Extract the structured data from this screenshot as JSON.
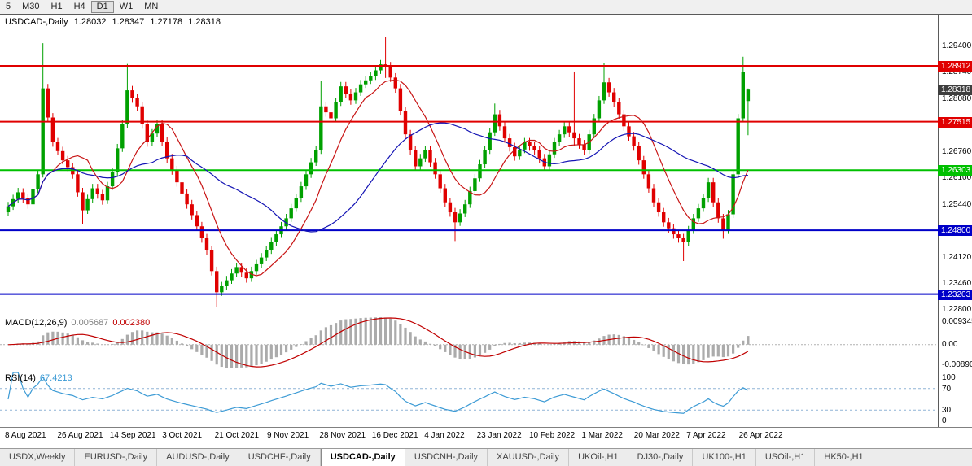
{
  "toolbar": {
    "timeframes": [
      "5",
      "M30",
      "H1",
      "H4",
      "D1",
      "W1",
      "MN"
    ],
    "active": "D1"
  },
  "chart": {
    "symbol_period": "USDCAD-,Daily",
    "ohlc": {
      "open": "1.28032",
      "high": "1.28347",
      "low": "1.27178",
      "close": "1.28318"
    },
    "price_ticks": [
      "1.29400",
      "1.28740",
      "1.28080",
      "1.27420",
      "1.26760",
      "1.26100",
      "1.25440",
      "1.24780",
      "1.24120",
      "1.23460",
      "1.22800"
    ],
    "levels": [
      {
        "value": 1.28912,
        "label": "1.28912",
        "color": "#e00000"
      },
      {
        "value": 1.27515,
        "label": "1.27515",
        "color": "#e00000"
      },
      {
        "value": 1.26303,
        "label": "1.26303",
        "color": "#00c000"
      },
      {
        "value": 1.248,
        "label": "1.24800",
        "color": "#0000c8"
      },
      {
        "value": 1.23203,
        "label": "1.23203",
        "color": "#0000c8"
      }
    ],
    "current_price": {
      "value": 1.28318,
      "label": "1.28318",
      "color": "#3f3f3f"
    },
    "dates": [
      "8 Aug 2021",
      "26 Aug 2021",
      "14 Sep 2021",
      "3 Oct 2021",
      "21 Oct 2021",
      "9 Nov 2021",
      "28 Nov 2021",
      "16 Dec 2021",
      "4 Jan 2022",
      "23 Jan 2022",
      "10 Feb 2022",
      "1 Mar 2022",
      "20 Mar 2022",
      "7 Apr 2022",
      "26 Apr 2022"
    ],
    "colors": {
      "up": "#00a000",
      "down": "#e00000",
      "ma_fast": "#c81414",
      "ma_slow": "#1414b4"
    }
  },
  "chart_data": {
    "type": "candlestick",
    "symbol": "USDCAD",
    "timeframe": "Daily",
    "note": "values estimated from pixels; [open,high,low,close] per bar",
    "candles": [
      [
        1.2525,
        1.2551,
        1.2515,
        1.254
      ],
      [
        1.254,
        1.2569,
        1.2531,
        1.2558
      ],
      [
        1.2558,
        1.2586,
        1.2549,
        1.2575
      ],
      [
        1.2575,
        1.2585,
        1.2549,
        1.256
      ],
      [
        1.256,
        1.2571,
        1.2534,
        1.2545
      ],
      [
        1.2545,
        1.2593,
        1.2536,
        1.2582
      ],
      [
        1.2582,
        1.2631,
        1.2573,
        1.262
      ],
      [
        1.262,
        1.2948,
        1.2612,
        1.2835
      ],
      [
        1.2835,
        1.2846,
        1.2751,
        1.2762
      ],
      [
        1.2762,
        1.2773,
        1.2689,
        1.27
      ],
      [
        1.27,
        1.2711,
        1.2668,
        1.2678
      ],
      [
        1.2678,
        1.2689,
        1.2645,
        1.2655
      ],
      [
        1.2655,
        1.2666,
        1.2628,
        1.2638
      ],
      [
        1.2638,
        1.2649,
        1.2609,
        1.262
      ],
      [
        1.262,
        1.2631,
        1.2564,
        1.2575
      ],
      [
        1.2575,
        1.2586,
        1.2495,
        1.253
      ],
      [
        1.253,
        1.2569,
        1.2521,
        1.2558
      ],
      [
        1.2558,
        1.2596,
        1.2549,
        1.2585
      ],
      [
        1.2585,
        1.2596,
        1.2559,
        1.257
      ],
      [
        1.257,
        1.2581,
        1.2544,
        1.2555
      ],
      [
        1.2555,
        1.2601,
        1.2546,
        1.259
      ],
      [
        1.259,
        1.2636,
        1.2581,
        1.2625
      ],
      [
        1.2625,
        1.2696,
        1.2616,
        1.2685
      ],
      [
        1.2685,
        1.2756,
        1.2676,
        1.2745
      ],
      [
        1.2745,
        1.2896,
        1.2736,
        1.283
      ],
      [
        1.283,
        1.2841,
        1.2799,
        1.281
      ],
      [
        1.281,
        1.2821,
        1.2779,
        1.279
      ],
      [
        1.279,
        1.2801,
        1.2734,
        1.2745
      ],
      [
        1.2745,
        1.2756,
        1.2689,
        1.27
      ],
      [
        1.27,
        1.2733,
        1.2691,
        1.2722
      ],
      [
        1.2722,
        1.2756,
        1.2713,
        1.2745
      ],
      [
        1.2745,
        1.2756,
        1.2691,
        1.2702
      ],
      [
        1.2702,
        1.2713,
        1.2649,
        1.266
      ],
      [
        1.266,
        1.2671,
        1.2619,
        1.263
      ],
      [
        1.263,
        1.2641,
        1.2589,
        1.26
      ],
      [
        1.26,
        1.2611,
        1.2561,
        1.2572
      ],
      [
        1.2572,
        1.2583,
        1.2534,
        1.2545
      ],
      [
        1.2545,
        1.2556,
        1.2507,
        1.2518
      ],
      [
        1.2518,
        1.2529,
        1.2479,
        1.249
      ],
      [
        1.249,
        1.2501,
        1.2449,
        1.246
      ],
      [
        1.246,
        1.2471,
        1.2419,
        1.243
      ],
      [
        1.243,
        1.2441,
        1.2367,
        1.2378
      ],
      [
        1.2378,
        1.2389,
        1.2288,
        1.2325
      ],
      [
        1.2325,
        1.2351,
        1.2316,
        1.234
      ],
      [
        1.234,
        1.2366,
        1.2331,
        1.2355
      ],
      [
        1.2355,
        1.2383,
        1.2346,
        1.2372
      ],
      [
        1.2372,
        1.2399,
        1.2363,
        1.2388
      ],
      [
        1.2388,
        1.2399,
        1.2363,
        1.2374
      ],
      [
        1.2374,
        1.2385,
        1.2349,
        1.236
      ],
      [
        1.236,
        1.2389,
        1.2351,
        1.2378
      ],
      [
        1.2378,
        1.2406,
        1.2369,
        1.2395
      ],
      [
        1.2395,
        1.2423,
        1.2386,
        1.2412
      ],
      [
        1.2412,
        1.2441,
        1.2403,
        1.243
      ],
      [
        1.243,
        1.2461,
        1.2421,
        1.245
      ],
      [
        1.245,
        1.2481,
        1.2441,
        1.247
      ],
      [
        1.247,
        1.2501,
        1.2461,
        1.249
      ],
      [
        1.249,
        1.2521,
        1.2481,
        1.251
      ],
      [
        1.251,
        1.2546,
        1.2501,
        1.2535
      ],
      [
        1.2535,
        1.2571,
        1.2526,
        1.256
      ],
      [
        1.256,
        1.2601,
        1.2551,
        1.259
      ],
      [
        1.259,
        1.2631,
        1.2581,
        1.262
      ],
      [
        1.262,
        1.2661,
        1.2611,
        1.265
      ],
      [
        1.265,
        1.2691,
        1.2641,
        1.268
      ],
      [
        1.268,
        1.2853,
        1.2671,
        1.279
      ],
      [
        1.279,
        1.2801,
        1.2764,
        1.2775
      ],
      [
        1.2775,
        1.2786,
        1.2749,
        1.276
      ],
      [
        1.276,
        1.2811,
        1.2751,
        1.28
      ],
      [
        1.28,
        1.2851,
        1.2791,
        1.284
      ],
      [
        1.284,
        1.2851,
        1.2811,
        1.2822
      ],
      [
        1.2822,
        1.2833,
        1.2794,
        1.2805
      ],
      [
        1.2805,
        1.2836,
        1.2796,
        1.2825
      ],
      [
        1.2825,
        1.2856,
        1.2816,
        1.2845
      ],
      [
        1.2845,
        1.2866,
        1.2836,
        1.2855
      ],
      [
        1.2855,
        1.2876,
        1.2846,
        1.2865
      ],
      [
        1.2865,
        1.2891,
        1.2856,
        1.288
      ],
      [
        1.288,
        1.2906,
        1.2871,
        1.2895
      ],
      [
        1.2895,
        1.2964,
        1.2861,
        1.289
      ],
      [
        1.289,
        1.2901,
        1.2851,
        1.2862
      ],
      [
        1.2862,
        1.2873,
        1.2824,
        1.2835
      ],
      [
        1.2835,
        1.2846,
        1.2767,
        1.2778
      ],
      [
        1.2778,
        1.2789,
        1.2709,
        1.272
      ],
      [
        1.272,
        1.2731,
        1.2669,
        1.268
      ],
      [
        1.268,
        1.2691,
        1.2629,
        1.264
      ],
      [
        1.264,
        1.2671,
        1.2631,
        1.266
      ],
      [
        1.266,
        1.2691,
        1.2651,
        1.268
      ],
      [
        1.268,
        1.2691,
        1.2639,
        1.265
      ],
      [
        1.265,
        1.2661,
        1.2609,
        1.262
      ],
      [
        1.262,
        1.2631,
        1.2574,
        1.2585
      ],
      [
        1.2585,
        1.2596,
        1.2539,
        1.255
      ],
      [
        1.255,
        1.2561,
        1.2514,
        1.2525
      ],
      [
        1.2525,
        1.2536,
        1.2453,
        1.25
      ],
      [
        1.25,
        1.2533,
        1.2491,
        1.2522
      ],
      [
        1.2522,
        1.2556,
        1.2513,
        1.2545
      ],
      [
        1.2545,
        1.2589,
        1.2536,
        1.2578
      ],
      [
        1.2578,
        1.2621,
        1.2569,
        1.261
      ],
      [
        1.261,
        1.2656,
        1.2601,
        1.2645
      ],
      [
        1.2645,
        1.2691,
        1.2636,
        1.268
      ],
      [
        1.268,
        1.2736,
        1.2671,
        1.2725
      ],
      [
        1.2725,
        1.2797,
        1.2716,
        1.277
      ],
      [
        1.277,
        1.2781,
        1.2729,
        1.274
      ],
      [
        1.274,
        1.2751,
        1.2699,
        1.271
      ],
      [
        1.271,
        1.2721,
        1.2677,
        1.2688
      ],
      [
        1.2688,
        1.2699,
        1.2654,
        1.2665
      ],
      [
        1.2665,
        1.2693,
        1.2656,
        1.2682
      ],
      [
        1.2682,
        1.2711,
        1.2673,
        1.27
      ],
      [
        1.27,
        1.2711,
        1.2679,
        1.269
      ],
      [
        1.269,
        1.2701,
        1.2669,
        1.268
      ],
      [
        1.268,
        1.2691,
        1.2649,
        1.266
      ],
      [
        1.266,
        1.2671,
        1.2629,
        1.264
      ],
      [
        1.264,
        1.2681,
        1.2631,
        1.267
      ],
      [
        1.267,
        1.2711,
        1.2661,
        1.27
      ],
      [
        1.27,
        1.2731,
        1.2691,
        1.272
      ],
      [
        1.272,
        1.2751,
        1.2711,
        1.274
      ],
      [
        1.274,
        1.2751,
        1.2714,
        1.2725
      ],
      [
        1.2725,
        1.2877,
        1.269,
        1.271
      ],
      [
        1.271,
        1.2721,
        1.2684,
        1.2695
      ],
      [
        1.2695,
        1.2706,
        1.2669,
        1.268
      ],
      [
        1.268,
        1.2731,
        1.2671,
        1.272
      ],
      [
        1.272,
        1.2771,
        1.2711,
        1.276
      ],
      [
        1.276,
        1.2816,
        1.2751,
        1.2805
      ],
      [
        1.2805,
        1.2899,
        1.2796,
        1.285
      ],
      [
        1.285,
        1.2861,
        1.2814,
        1.2825
      ],
      [
        1.2825,
        1.2836,
        1.2789,
        1.28
      ],
      [
        1.28,
        1.2811,
        1.2759,
        1.277
      ],
      [
        1.277,
        1.2781,
        1.2729,
        1.274
      ],
      [
        1.274,
        1.2751,
        1.2704,
        1.2715
      ],
      [
        1.2715,
        1.2726,
        1.2679,
        1.269
      ],
      [
        1.269,
        1.2701,
        1.2644,
        1.2655
      ],
      [
        1.2655,
        1.2666,
        1.2609,
        1.262
      ],
      [
        1.262,
        1.2631,
        1.2574,
        1.2585
      ],
      [
        1.2585,
        1.2596,
        1.2539,
        1.255
      ],
      [
        1.255,
        1.2561,
        1.2514,
        1.2525
      ],
      [
        1.2525,
        1.2536,
        1.2489,
        1.25
      ],
      [
        1.25,
        1.2511,
        1.2474,
        1.2485
      ],
      [
        1.2485,
        1.2496,
        1.2459,
        1.247
      ],
      [
        1.247,
        1.2481,
        1.2449,
        1.246
      ],
      [
        1.246,
        1.2471,
        1.2403,
        1.245
      ],
      [
        1.245,
        1.2491,
        1.2441,
        1.248
      ],
      [
        1.248,
        1.2521,
        1.2471,
        1.251
      ],
      [
        1.251,
        1.2546,
        1.2501,
        1.2535
      ],
      [
        1.2535,
        1.2571,
        1.2526,
        1.256
      ],
      [
        1.256,
        1.2611,
        1.2551,
        1.26
      ],
      [
        1.26,
        1.2611,
        1.2539,
        1.255
      ],
      [
        1.255,
        1.2561,
        1.2499,
        1.251
      ],
      [
        1.251,
        1.2521,
        1.2459,
        1.248
      ],
      [
        1.248,
        1.2531,
        1.2471,
        1.252
      ],
      [
        1.252,
        1.2631,
        1.2511,
        1.262
      ],
      [
        1.262,
        1.2771,
        1.2611,
        1.276
      ],
      [
        1.276,
        1.2914,
        1.2751,
        1.2875
      ],
      [
        1.28032,
        1.28347,
        1.27178,
        1.28318
      ]
    ],
    "overlays": [
      {
        "name": "ma-fast",
        "type": "sma",
        "period": 10,
        "color": "#c81414"
      },
      {
        "name": "ma-slow",
        "type": "sma",
        "period": 30,
        "color": "#1414b4"
      }
    ]
  },
  "macd": {
    "label": "MACD(12,26,9)",
    "value_main": "0.005687",
    "value_signal": "0.002380",
    "params": [
      12,
      26,
      9
    ],
    "axis": [
      "0.009345",
      "0.00",
      "-0.008900"
    ],
    "range": [
      -0.0089,
      0.009345
    ],
    "colors": {
      "histogram": "#ababab",
      "signal": "#c00000"
    }
  },
  "rsi": {
    "label": "RSI(14)",
    "value": "67.4213",
    "period": 14,
    "axis": [
      "100",
      "70",
      "30",
      "0"
    ],
    "levels": [
      70,
      30
    ],
    "color": "#3d9bd5"
  },
  "tabs": [
    {
      "label": "USDX,Weekly",
      "active": false
    },
    {
      "label": "EURUSD-,Daily",
      "active": false
    },
    {
      "label": "AUDUSD-,Daily",
      "active": false
    },
    {
      "label": "USDCHF-,Daily",
      "active": false
    },
    {
      "label": "USDCAD-,Daily",
      "active": true
    },
    {
      "label": "USDCNH-,Daily",
      "active": false
    },
    {
      "label": "XAUUSD-,Daily",
      "active": false
    },
    {
      "label": "UKOil-,H1",
      "active": false
    },
    {
      "label": "DJ30-,Daily",
      "active": false
    },
    {
      "label": "UK100-,H1",
      "active": false
    },
    {
      "label": "USOil-,H1",
      "active": false
    },
    {
      "label": "HK50-,H1",
      "active": false
    }
  ]
}
